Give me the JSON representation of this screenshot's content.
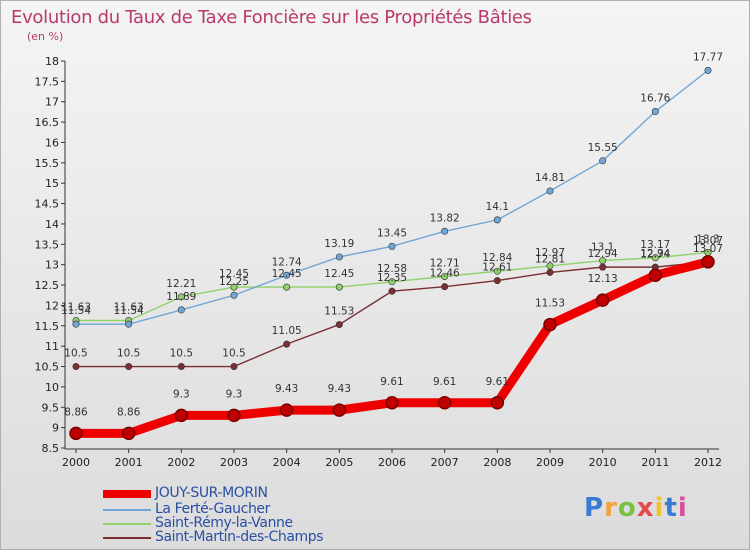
{
  "header": {
    "title": "Evolution du Taux de Taxe Foncière sur les Propriétés Bâties",
    "unit": "(en %)"
  },
  "logo": {
    "text": "Proxiti",
    "colors": [
      "#3a7bd5",
      "#f2a33a",
      "#7cc242",
      "#e34b4b",
      "#f2c22e",
      "#3a7bd5",
      "#d94fa0"
    ]
  },
  "chart_data": {
    "type": "line",
    "title": "Evolution du Taux de Taxe Foncière sur les Propriétés Bâties",
    "ylabel": "(en %)",
    "xlabel": "",
    "x": [
      "2000",
      "2001",
      "2002",
      "2003",
      "2004",
      "2005",
      "2006",
      "2007",
      "2008",
      "2009",
      "2010",
      "2011",
      "2012"
    ],
    "ylim": [
      8.5,
      18
    ],
    "yticks": [
      "8.5",
      "9",
      "9.5",
      "10",
      "10.5",
      "11",
      "11.5",
      "12",
      "12.5",
      "13",
      "13.5",
      "14",
      "14.5",
      "15",
      "15.5",
      "16",
      "16.5",
      "17",
      "17.5",
      "18"
    ],
    "grid": false,
    "legend": "bottom-left",
    "series": [
      {
        "name": "JOUY-SUR-MORIN",
        "color": "#ee0000",
        "values": [
          8.86,
          8.86,
          9.3,
          9.3,
          9.43,
          9.43,
          9.61,
          9.61,
          9.61,
          11.53,
          12.13,
          12.74,
          13.07
        ],
        "labels": [
          "8.86",
          "8.86",
          "9.3",
          "9.3",
          "9.43",
          "9.43",
          "9.61",
          "9.61",
          "9.61",
          "11.53",
          "12.13",
          "12.74",
          "13.07"
        ]
      },
      {
        "name": "La Ferté-Gaucher",
        "color": "#6fa7d8",
        "values": [
          11.54,
          11.54,
          11.89,
          12.25,
          12.74,
          13.19,
          13.45,
          13.82,
          14.1,
          14.81,
          15.55,
          16.76,
          17.77
        ],
        "labels": [
          "11.54",
          "11.54",
          "11.89",
          "12.25",
          "12.74",
          "13.19",
          "13.45",
          "13.82",
          "14.1",
          "14.81",
          "15.55",
          "16.76",
          "17.77"
        ]
      },
      {
        "name": "Saint-Rémy-la-Vanne",
        "color": "#8fd16a",
        "values": [
          11.63,
          11.63,
          12.21,
          12.45,
          12.45,
          12.45,
          12.58,
          12.71,
          12.84,
          12.97,
          13.1,
          13.17,
          13.3
        ],
        "labels": [
          "11.63",
          "11.63",
          "12.21",
          "12.45",
          "12.45",
          "12.45",
          "12.58",
          "12.71",
          "12.84",
          "12.97",
          "13.1",
          "13.17",
          "13.3"
        ]
      },
      {
        "name": "Saint-Martin-des-Champs",
        "color": "#7a2f33",
        "values": [
          10.5,
          10.5,
          10.5,
          10.5,
          11.05,
          11.53,
          12.35,
          12.46,
          12.61,
          12.81,
          12.94,
          12.94,
          13.07
        ],
        "labels": [
          "10.5",
          "10.5",
          "10.5",
          "10.5",
          "11.05",
          "11.53",
          "12.35",
          "12.46",
          "12.61",
          "12.81",
          "12.94",
          "12.94",
          "13.07"
        ]
      }
    ]
  }
}
